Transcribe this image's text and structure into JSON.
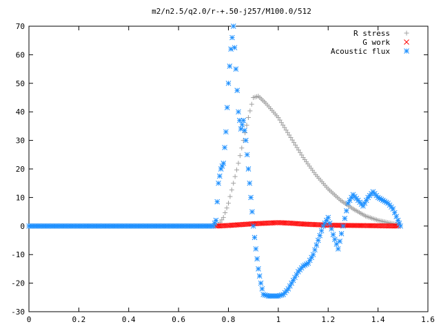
{
  "chart_data": {
    "type": "scatter",
    "title": "m2/n2.5/q2.0/r-+.50-j257/M100.0/512",
    "xlabel": "",
    "ylabel": "",
    "xlim": [
      0,
      1.6
    ],
    "ylim": [
      -30,
      70
    ],
    "xticks": [
      "0",
      "0.2",
      "0.4",
      "0.6",
      "0.8",
      "1",
      "1.2",
      "1.4",
      "1.6"
    ],
    "yticks": [
      "-30",
      "-20",
      "-10",
      "0",
      "10",
      "20",
      "30",
      "40",
      "50",
      "60",
      "70"
    ],
    "legend_position": "top-right",
    "grid": false,
    "series": [
      {
        "name": "R stress",
        "marker": "plus",
        "color": "#a0a0a0",
        "points": [
          [
            0.0,
            0
          ],
          [
            0.74,
            0
          ],
          [
            0.76,
            0.5
          ],
          [
            0.78,
            3
          ],
          [
            0.8,
            8
          ],
          [
            0.82,
            15
          ],
          [
            0.84,
            22
          ],
          [
            0.86,
            30
          ],
          [
            0.88,
            38
          ],
          [
            0.9,
            45
          ],
          [
            0.92,
            45.5
          ],
          [
            0.95,
            43
          ],
          [
            1.0,
            38
          ],
          [
            1.05,
            31
          ],
          [
            1.1,
            24
          ],
          [
            1.15,
            18
          ],
          [
            1.2,
            13
          ],
          [
            1.25,
            9
          ],
          [
            1.3,
            6
          ],
          [
            1.35,
            3.5
          ],
          [
            1.4,
            2
          ],
          [
            1.45,
            1
          ],
          [
            1.48,
            0.5
          ]
        ]
      },
      {
        "name": "G work",
        "marker": "cross",
        "color": "#ff0000",
        "points": [
          [
            0.75,
            0
          ],
          [
            0.8,
            0.2
          ],
          [
            0.85,
            0.5
          ],
          [
            0.9,
            0.8
          ],
          [
            0.95,
            1.0
          ],
          [
            1.0,
            1.2
          ],
          [
            1.05,
            1.0
          ],
          [
            1.1,
            0.7
          ],
          [
            1.15,
            0.5
          ],
          [
            1.2,
            0.3
          ],
          [
            1.3,
            0.2
          ],
          [
            1.4,
            0.1
          ],
          [
            1.48,
            0
          ]
        ]
      },
      {
        "name": "Acoustic flux",
        "marker": "star",
        "color": "#1e90ff",
        "points": [
          [
            0.0,
            0
          ],
          [
            0.74,
            0
          ],
          [
            0.75,
            2
          ],
          [
            0.76,
            15
          ],
          [
            0.77,
            20
          ],
          [
            0.78,
            22
          ],
          [
            0.79,
            33
          ],
          [
            0.8,
            50
          ],
          [
            0.81,
            62
          ],
          [
            0.82,
            70
          ],
          [
            0.83,
            55
          ],
          [
            0.84,
            40
          ],
          [
            0.85,
            34
          ],
          [
            0.86,
            37
          ],
          [
            0.87,
            30
          ],
          [
            0.88,
            20
          ],
          [
            0.89,
            10
          ],
          [
            0.9,
            0
          ],
          [
            0.91,
            -8
          ],
          [
            0.92,
            -15
          ],
          [
            0.93,
            -20
          ],
          [
            0.94,
            -24
          ],
          [
            0.96,
            -24.5
          ],
          [
            1.0,
            -24.5
          ],
          [
            1.02,
            -24
          ],
          [
            1.04,
            -22
          ],
          [
            1.06,
            -19
          ],
          [
            1.08,
            -16
          ],
          [
            1.1,
            -14
          ],
          [
            1.12,
            -13
          ],
          [
            1.14,
            -10
          ],
          [
            1.16,
            -5
          ],
          [
            1.18,
            0
          ],
          [
            1.2,
            3
          ],
          [
            1.22,
            -3
          ],
          [
            1.24,
            -8
          ],
          [
            1.26,
            0
          ],
          [
            1.28,
            8
          ],
          [
            1.3,
            11
          ],
          [
            1.32,
            9
          ],
          [
            1.34,
            7
          ],
          [
            1.36,
            10
          ],
          [
            1.38,
            12
          ],
          [
            1.4,
            10
          ],
          [
            1.42,
            9
          ],
          [
            1.44,
            8
          ],
          [
            1.46,
            6
          ],
          [
            1.48,
            2
          ],
          [
            1.49,
            0
          ]
        ]
      }
    ]
  }
}
